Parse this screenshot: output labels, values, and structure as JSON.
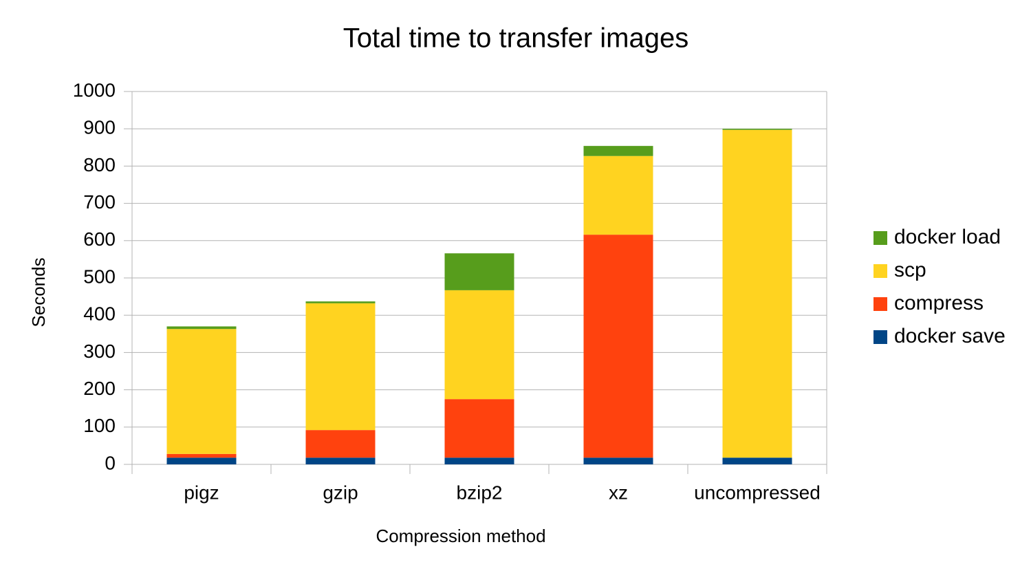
{
  "chart_data": {
    "type": "stacked-bar",
    "title": "Total time to transfer images",
    "x_label": "Compression method",
    "y_label": "Seconds",
    "categories": [
      "pigz",
      "gzip",
      "bzip2",
      "xz",
      "uncompressed"
    ],
    "series": [
      {
        "name": "docker save",
        "color": "#004586",
        "values": [
          18,
          18,
          18,
          18,
          18
        ]
      },
      {
        "name": "compress",
        "color": "#ff420e",
        "values": [
          10,
          74,
          157,
          598,
          0
        ]
      },
      {
        "name": "scp",
        "color": "#ffd320",
        "values": [
          335,
          340,
          292,
          211,
          879
        ]
      },
      {
        "name": "docker load",
        "color": "#579d1c",
        "values": [
          7,
          5,
          99,
          27,
          3
        ]
      }
    ],
    "ylim": [
      0,
      1000
    ],
    "yticks": [
      0,
      100,
      200,
      300,
      400,
      500,
      600,
      700,
      800,
      900,
      1000
    ],
    "grid": true,
    "legend": "right"
  }
}
